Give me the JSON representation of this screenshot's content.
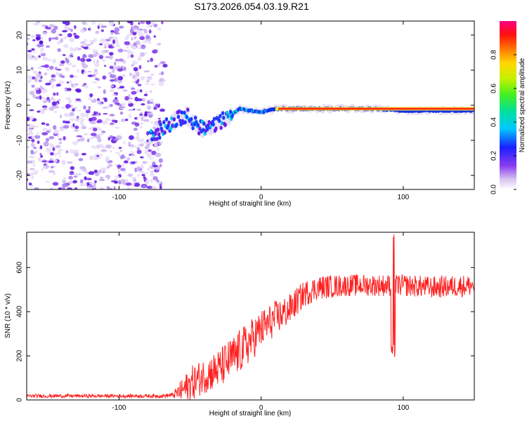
{
  "chart_data": [
    {
      "type": "heatmap",
      "title": "S173.2026.054.03.19.R21",
      "xlabel": "Height of straight line (km)",
      "ylabel": "Frequency (Hz)",
      "xlim": [
        -165,
        150
      ],
      "ylim": [
        -24,
        24
      ],
      "xticks": [
        -100,
        0,
        100
      ],
      "yticks": [
        -20,
        -10,
        0,
        10,
        20
      ],
      "noise_region_x": [
        -165,
        -70
      ],
      "signal_path": {
        "x": [
          -78,
          -70,
          -60,
          -52,
          -45,
          -38,
          -30,
          -22,
          -15,
          -8,
          0,
          10,
          20,
          40,
          60,
          80,
          100,
          120,
          140,
          150
        ],
        "freq_hz": [
          -9,
          -7,
          -4,
          -3,
          -6,
          -7,
          -5,
          -3,
          -1,
          -1.5,
          -2,
          -1,
          -1,
          -1,
          -1,
          -1,
          -1.5,
          -1.5,
          -1.5,
          -1.5
        ]
      },
      "colorbar": {
        "label": "Normalized spectral amplitude",
        "range": [
          0,
          1
        ],
        "ticks": [
          0.0,
          0.2,
          0.4,
          0.6,
          0.8
        ]
      },
      "colorbar_tick_labels": [
        "0.0",
        "0.2",
        "0.4",
        "0.6",
        "0.8"
      ]
    },
    {
      "type": "line",
      "xlabel": "Height of straight line (km)",
      "ylabel": "SNR (10 * v/v)",
      "xlim": [
        -165,
        150
      ],
      "ylim": [
        0,
        760
      ],
      "xticks": [
        -100,
        0,
        100
      ],
      "yticks": [
        0,
        200,
        400,
        600
      ],
      "series": [
        {
          "name": "SNR",
          "color": "#ff2020",
          "envelope_x": [
            -165,
            -70,
            -62,
            -55,
            -48,
            -40,
            -30,
            -20,
            -10,
            0,
            10,
            20,
            30,
            40,
            60,
            80,
            90,
            92,
            94,
            100,
            120,
            150
          ],
          "envelope_mean": [
            18,
            18,
            22,
            45,
            80,
            110,
            140,
            190,
            250,
            320,
            370,
            410,
            480,
            510,
            520,
            520,
            520,
            520,
            520,
            520,
            510,
            520
          ],
          "envelope_spread": [
            8,
            8,
            12,
            60,
            80,
            80,
            90,
            100,
            100,
            90,
            80,
            70,
            60,
            55,
            50,
            50,
            50,
            50,
            50,
            50,
            50,
            50
          ]
        }
      ]
    }
  ]
}
